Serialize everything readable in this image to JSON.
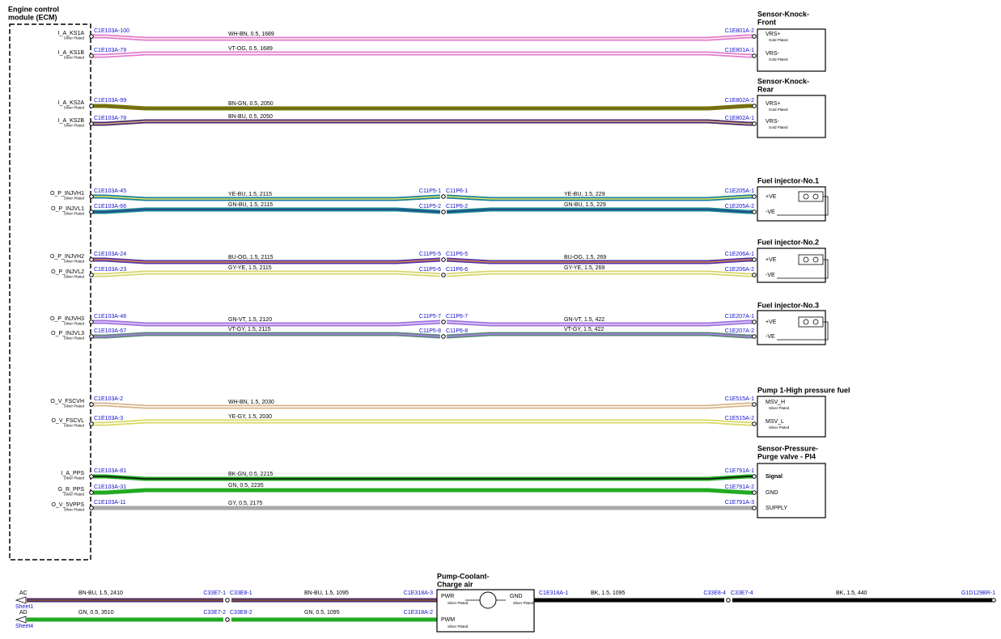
{
  "ecm": {
    "title": [
      "Engine control",
      "module (ECM)"
    ]
  },
  "devices": [
    {
      "title": [
        "Sensor-Knock-",
        "Front"
      ],
      "pins": [
        {
          "name": "VRS+",
          "plating": "Gold Plated"
        },
        {
          "name": "VRS-",
          "plating": "Gold Plated"
        }
      ]
    },
    {
      "title": [
        "Sensor-Knock-",
        "Rear"
      ],
      "pins": [
        {
          "name": "VRS+",
          "plating": "Gold Plated"
        },
        {
          "name": "VRS-",
          "plating": "Gold Plated"
        }
      ]
    },
    {
      "title": [
        "Fuel injector-No.1"
      ],
      "pins": [
        {
          "name": "+VE"
        },
        {
          "name": "-VE"
        }
      ]
    },
    {
      "title": [
        "Fuel injector-No.2"
      ],
      "pins": [
        {
          "name": "+VE"
        },
        {
          "name": "-VE"
        }
      ]
    },
    {
      "title": [
        "Fuel injector-No.3"
      ],
      "pins": [
        {
          "name": "+VE"
        },
        {
          "name": "-VE"
        }
      ]
    },
    {
      "title": [
        "Pump 1-High pressure fuel"
      ],
      "pins": [
        {
          "name": "MSV_H",
          "plating": "Silver Plated"
        },
        {
          "name": "MSV_L",
          "plating": "Silver Plated"
        }
      ]
    },
    {
      "title": [
        "Sensor-Pressure-",
        "Purge valve - PI4"
      ],
      "pins": [
        {
          "name": "Signal"
        },
        {
          "name": "GND"
        },
        {
          "name": "SUPPLY"
        }
      ]
    }
  ],
  "wires": [
    {
      "pin": "I_A_KS1A",
      "plating": "Silver Plated",
      "from": "C1E103A-100",
      "segments": [
        "WH-BN,  0.5,  1689"
      ],
      "to": "C1E801A-2",
      "colors": [
        "#e27bd0",
        "#fff4e8"
      ]
    },
    {
      "pin": "I_A_KS1B",
      "plating": "Silver Plated",
      "from": "C1E103A-79",
      "segments": [
        "VT-OG,  0.5,  1689"
      ],
      "to": "C1E801A-1",
      "colors": [
        "#e27bd0",
        "#ffffff"
      ]
    },
    {
      "pin": "I_A_KS2A",
      "plating": "Silver Plated",
      "from": "C1E103A-99",
      "segments": [
        "BN-GN,  0.5,  2050"
      ],
      "to": "C1E802A-2",
      "colors": [
        "#6a7d00",
        "#8a5a2a"
      ]
    },
    {
      "pin": "I_A_KS2B",
      "plating": "Silver Plated",
      "from": "C1E103A-78",
      "segments": [
        "BN-BU,  0.5,  2050"
      ],
      "to": "C1E802A-1",
      "colors": [
        "#4b2a6e",
        "#d8b48a"
      ]
    },
    {
      "pin": "O_P_INJVH1",
      "plating": "Silver Plated",
      "from": "C1E103A-45",
      "segments": [
        "YE-BU,  1.5,  2115",
        "YE-BU,  1.5,  229"
      ],
      "splice": [
        "C11P5-1",
        "C11P6-1"
      ],
      "to": "C1E205A-1",
      "colors": [
        "#1a7fa0",
        "#e8e860"
      ]
    },
    {
      "pin": "O_P_INJVL1",
      "plating": "Silver Plated",
      "from": "C1E103A-66",
      "segments": [
        "GN-BU,  1.5,  2115",
        "GN-BU,  1.5,  229"
      ],
      "splice": [
        "C11P5-2",
        "C11P6-2"
      ],
      "to": "C1E205A-2",
      "colors": [
        "#1a8a8a",
        "#2a3a9a"
      ]
    },
    {
      "pin": "O_P_INJVH2",
      "plating": "Silver Plated",
      "from": "C1E103A-24",
      "segments": [
        "BU-OG,  1.5,  2115",
        "BU-OG,  1.5,  269"
      ],
      "splice": [
        "C11P5-5",
        "C11P6-5"
      ],
      "to": "C1E206A-1",
      "colors": [
        "#5533aa",
        "#d88a40"
      ]
    },
    {
      "pin": "O_P_INJVL2",
      "plating": "Silver Plated",
      "from": "C1E103A-23",
      "segments": [
        "GY-YE,  1.5,  2115",
        "GY-YE,  1.5,  269"
      ],
      "splice": [
        "C11P5-6",
        "C11P6-6"
      ],
      "to": "C1E206A-2",
      "colors": [
        "#d6d66a",
        "#ffffff"
      ]
    },
    {
      "pin": "O_P_INJVH3",
      "plating": "Silver Plated",
      "from": "C1E103A-46",
      "segments": [
        "GN-VT,  1.5,  2120",
        "GN-VT,  1.5,  422"
      ],
      "splice": [
        "C11P5-7",
        "C11P6-7"
      ],
      "to": "C1E207A-1",
      "colors": [
        "#a070e0",
        "#e0d0f8"
      ]
    },
    {
      "pin": "O_P_INJVL3",
      "plating": "Silver Plated",
      "from": "C1E103A-67",
      "segments": [
        "VT-GY,  1.5,  2115",
        "VT-GY,  1.5,  422"
      ],
      "splice": [
        "C11P5-8",
        "C11P6-8"
      ],
      "to": "C1E207A-2",
      "colors": [
        "#5a8a7a",
        "#b080e8"
      ]
    },
    {
      "pin": "O_V_FSCVH",
      "plating": "Silver Plated",
      "from": "C1E103A-2",
      "segments": [
        "WH-BN,  1.5,  2030"
      ],
      "to": "C1E515A-1",
      "colors": [
        "#d8b48a",
        "#ffffff"
      ]
    },
    {
      "pin": "O_V_FSCVL",
      "plating": "Silver Plated",
      "from": "C1E103A-3",
      "segments": [
        "YE-GY,  1.5,  2030"
      ],
      "to": "C1E515A-2",
      "colors": [
        "#d8d860",
        "#ffffff"
      ]
    },
    {
      "pin": "I_A_PPS",
      "plating": "Silver Plated",
      "from": "C1E103A-81",
      "segments": [
        "BK-GN,  0.5,  2215"
      ],
      "to": "C1E791A-1",
      "colors": [
        "#22aa22",
        "#111111"
      ]
    },
    {
      "pin": "G_R_PPS",
      "plating": "Silver Plated",
      "from": "C1E103A-31",
      "segments": [
        "GN,  0.5,  2235"
      ],
      "to": "C1E791A-2",
      "colors": [
        "#22aa22",
        "#22aa22"
      ]
    },
    {
      "pin": "O_V_5VPPS",
      "plating": "Silver Plated",
      "from": "C1E103A-11",
      "segments": [
        "GY,  0.5,  2175"
      ],
      "to": "C1E791A-3",
      "colors": [
        "#aaaaaa",
        "#aaaaaa"
      ]
    }
  ],
  "bottom": {
    "device": {
      "title": [
        "Pump-Coolant-",
        "Charge air"
      ],
      "pins": [
        {
          "name": "PWR",
          "plating": "Silver Plated"
        },
        {
          "name": "GND",
          "plating": "Silver Plated"
        },
        {
          "name": "PWM",
          "plating": "Silver Plated"
        }
      ]
    },
    "rows": [
      {
        "sheet_ref": "AC",
        "sheet": "Sheet1",
        "segments": [
          "BN-BU,  1.5,  2410",
          "BN-BU,  1.5,  1095"
        ],
        "splice": [
          "C33E7-1",
          "C33E8-1"
        ],
        "to": "C1E318A-3",
        "colors": [
          "#4b2a6e",
          "#8a5a2a"
        ]
      },
      {
        "sheet_ref": "AD",
        "sheet": "Sheet4",
        "segments": [
          "GN,  0.5,  3510",
          "GN,  0.5,  1095"
        ],
        "splice": [
          "C33E7-2",
          "C33E8-2"
        ],
        "to": "C1E318A-2",
        "colors": [
          "#22aa22",
          "#22aa22"
        ]
      }
    ],
    "ground": {
      "from": "C1E318A-1",
      "segments": [
        "BK,  1.5,  1095",
        "BK,  1.5,  440"
      ],
      "splice": [
        "C33E8-4",
        "C33E7-4"
      ],
      "to": "G1D129BR-1",
      "colors": [
        "#000000",
        "#000000"
      ]
    }
  }
}
